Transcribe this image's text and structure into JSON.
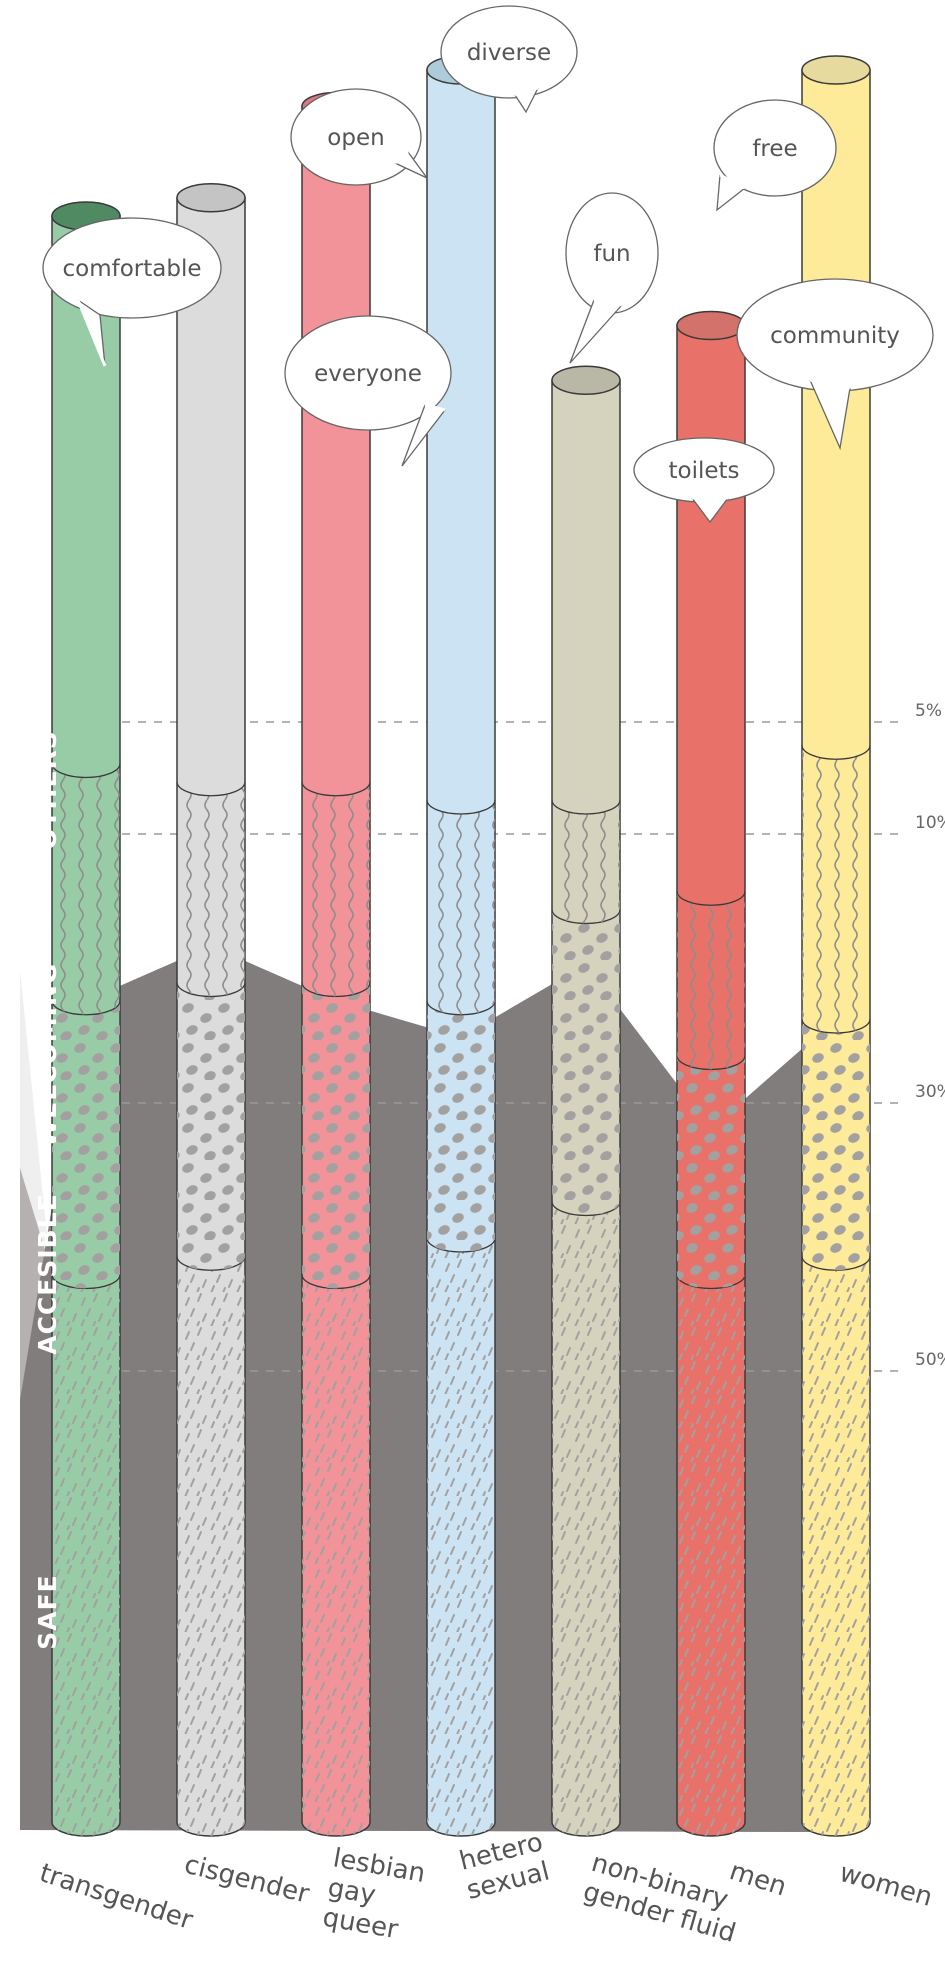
{
  "bubbles": [
    "comfortable",
    "open",
    "diverse",
    "everyone",
    "fun",
    "free",
    "community",
    "toilets"
  ],
  "band_labels": [
    "OTHERS",
    "WELCOMING",
    "ACCESIBLE",
    "SAFE"
  ],
  "reference_lines": [
    "5%",
    "10%",
    "30%",
    "50%"
  ],
  "colors": {
    "safe_area": "#817d7c",
    "accesible_area": "#b6b1b1",
    "welcoming_area": "#efefef",
    "pattern_fill": "#a3a0a0",
    "outline": "#3a3a3a",
    "label_text": "#555555"
  },
  "chart_data": {
    "type": "bar",
    "subtype": "stacked cylinders with background area bands",
    "categories": [
      {
        "name": "transgender",
        "lines": [
          "transgender"
        ],
        "color": "#98cca6",
        "cap": "#4f8a63"
      },
      {
        "name": "cisgender",
        "lines": [
          "cisgender"
        ],
        "color": "#dcdcdc",
        "cap": "#c4c4c4"
      },
      {
        "name": "lesbian gay queer",
        "lines": [
          "lesbian",
          "gay",
          "queer"
        ],
        "color": "#f19398",
        "cap": "#d97880"
      },
      {
        "name": "hetero sexual",
        "lines": [
          "hetero",
          "sexual"
        ],
        "color": "#cce3f3",
        "cap": "#aecbda"
      },
      {
        "name": "non-binary gender fluid",
        "lines": [
          "non-binary",
          "gender fluid"
        ],
        "color": "#d5d3bd",
        "cap": "#b9b7a5"
      },
      {
        "name": "men",
        "lines": [
          "men"
        ],
        "color": "#e87169",
        "cap": "#d2726b"
      },
      {
        "name": "women",
        "lines": [
          "women"
        ],
        "color": "#feeb9a",
        "cap": "#e7da9f"
      }
    ],
    "series": [
      {
        "name": "SAFE",
        "pattern": "dashes",
        "values": [
          30,
          31,
          30,
          32,
          34,
          30,
          31
        ]
      },
      {
        "name": "ACCESIBLE",
        "pattern": "dots",
        "values": [
          15,
          15,
          16,
          13,
          16,
          12,
          13
        ]
      },
      {
        "name": "WELCOMING",
        "pattern": "waves",
        "values": [
          13,
          11,
          11,
          11,
          6,
          9,
          15
        ]
      },
      {
        "name": "OTHERS",
        "pattern": "plain",
        "values": [
          30,
          32,
          37,
          40,
          23,
          31,
          37
        ]
      }
    ],
    "reference_values": [
      5,
      10,
      30,
      50
    ],
    "area_bands": {
      "safe_top": [
        45,
        48,
        45,
        43,
        47,
        38,
        44
      ],
      "accesible_top": [
        24,
        26,
        24,
        23,
        20,
        25,
        22
      ],
      "welcoming_top": [
        11,
        13,
        10,
        10,
        10,
        16,
        14
      ]
    },
    "grid": "dashed horizontal reference lines",
    "legend": "none"
  }
}
